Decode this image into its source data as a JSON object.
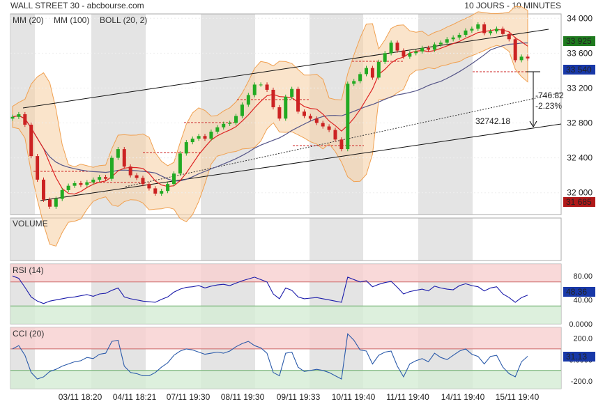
{
  "header": {
    "title": "WALL STREET 30 - abcbourse.com",
    "period": "10 JOURS - 10 MINUTES"
  },
  "colors": {
    "price_up": "#22aa22",
    "price_down": "#cc2222",
    "mm20": "#dd2222",
    "mm100": "#555588",
    "boll": "#f0a050",
    "boll_fill": "#f6d2a8",
    "rsi_line": "#1a1aaa",
    "cci_line": "#2a5aaa",
    "overbought": "#f8d0d0",
    "oversold": "#d4ecd4",
    "badge_green": "#1e7a1e",
    "badge_blue": "#1838a8",
    "badge_red": "#b01818"
  },
  "chart_data": [
    {
      "type": "candlestick",
      "panel": "price",
      "legend": [
        {
          "label": "MM (20)",
          "color": "#dd2222"
        },
        {
          "label": "MM (100)",
          "color": "#555588"
        },
        {
          "label": "BOLL (20, 2)",
          "color": "#f0a050"
        }
      ],
      "x_tick_labels": [
        "03/11 18:20",
        "04/11 18:21",
        "07/11 19:30",
        "08/11 19:30",
        "09/11 19:33",
        "10/11 19:40",
        "11/11 19:40",
        "14/11 19:40",
        "15/11 19:40"
      ],
      "y_tick_labels": [
        "34 000",
        "33 600",
        "33 200",
        "32 800",
        "32 400",
        "32 000"
      ],
      "ylim": [
        31750,
        34050
      ],
      "close_series": [
        32870,
        32900,
        32780,
        32420,
        32150,
        31920,
        31840,
        31930,
        32030,
        32080,
        32110,
        32090,
        32120,
        32150,
        32180,
        32160,
        32400,
        32500,
        32300,
        32200,
        32170,
        32100,
        32050,
        31990,
        32020,
        32100,
        32220,
        32450,
        32580,
        32620,
        32650,
        32620,
        32700,
        32750,
        32790,
        32800,
        32880,
        33010,
        33120,
        33240,
        33240,
        33180,
        32980,
        32850,
        33100,
        33190,
        32930,
        32880,
        32850,
        32800,
        32760,
        32720,
        32610,
        32500,
        33250,
        33280,
        33360,
        33430,
        33320,
        33500,
        33600,
        33720,
        33630,
        33560,
        33600,
        33620,
        33660,
        33640,
        33700,
        33720,
        33760,
        33780,
        33810,
        33860,
        33880,
        33930,
        33830,
        33850,
        33880,
        33820,
        33760,
        33520,
        33560,
        33540
      ],
      "current_price": "33 540",
      "high_marker": "33 925",
      "low_marker": "31 685",
      "annotation_value": "32742.18",
      "annotation_diff": "-746.82",
      "annotation_pct": "-2.23%"
    },
    {
      "type": "bar",
      "panel": "volume",
      "title": "VOLUME",
      "values": []
    },
    {
      "type": "line",
      "panel": "rsi",
      "title": "RSI (14)",
      "y_tick_labels": [
        "80.00",
        "40.00",
        "0.0000"
      ],
      "ylim": [
        0,
        100
      ],
      "overbought": 70,
      "oversold": 30,
      "values": [
        80,
        76,
        61,
        45,
        38,
        34,
        38,
        40,
        42,
        44,
        45,
        47,
        49,
        46,
        50,
        51,
        56,
        60,
        45,
        42,
        40,
        38,
        37,
        36,
        41,
        45,
        53,
        58,
        61,
        62,
        64,
        60,
        63,
        65,
        66,
        64,
        68,
        72,
        75,
        78,
        74,
        70,
        50,
        42,
        60,
        56,
        45,
        42,
        43,
        44,
        42,
        40,
        38,
        36,
        78,
        74,
        70,
        72,
        62,
        66,
        69,
        71,
        61,
        50,
        54,
        56,
        58,
        55,
        63,
        60,
        58,
        57,
        64,
        67,
        64,
        62,
        55,
        60,
        62,
        50,
        44,
        36,
        44,
        48
      ],
      "current_value": "48.36"
    },
    {
      "type": "line",
      "panel": "cci",
      "title": "CCI (20)",
      "y_tick_labels": [
        "200.0",
        "0.0000",
        "-200.0"
      ],
      "ylim": [
        -270,
        300
      ],
      "overbought": 100,
      "oversold": -100,
      "values": [
        100,
        130,
        40,
        -120,
        -180,
        -160,
        -110,
        -90,
        -60,
        -40,
        -20,
        -10,
        20,
        10,
        50,
        60,
        170,
        180,
        -60,
        -120,
        -130,
        -150,
        -150,
        -120,
        -70,
        -30,
        40,
        80,
        100,
        90,
        70,
        50,
        60,
        70,
        60,
        80,
        120,
        150,
        170,
        130,
        110,
        60,
        -120,
        -150,
        60,
        70,
        -70,
        -110,
        -100,
        -90,
        -100,
        -120,
        -150,
        -180,
        240,
        180,
        90,
        80,
        -40,
        40,
        70,
        80,
        -60,
        -160,
        -40,
        -10,
        10,
        -20,
        60,
        20,
        0,
        40,
        80,
        100,
        50,
        30,
        -40,
        30,
        40,
        -70,
        -130,
        -160,
        -20,
        31
      ],
      "current_value": "31.13"
    }
  ]
}
